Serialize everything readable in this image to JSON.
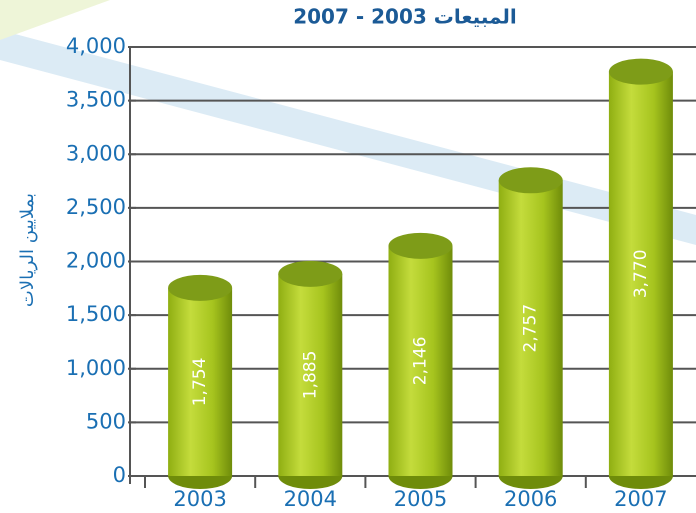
{
  "chart_data": {
    "type": "bar",
    "title": "المبيعات 2003 - 2007",
    "y_label": "بملايين الريالات",
    "categories": [
      "2003",
      "2004",
      "2005",
      "2006",
      "2007"
    ],
    "values": [
      1754,
      1885,
      2146,
      2757,
      3770
    ],
    "value_labels": [
      "1,754",
      "1,885",
      "2,146",
      "2,757",
      "3,770"
    ],
    "color": "#9cbf1a",
    "ylim": [
      0,
      4000
    ],
    "yticks": [
      0,
      500,
      {
        "value": 1000,
        "label": "1,000"
      },
      {
        "value": 1500,
        "label": "1,500"
      },
      {
        "value": 2000,
        "label": "2,000"
      },
      {
        "value": 2500,
        "label": "2,500"
      },
      {
        "value": 3000,
        "label": "3,000"
      },
      {
        "value": 3500,
        "label": "3,500"
      },
      {
        "value": 4000,
        "label": "4,000"
      }
    ],
    "grid": true
  }
}
